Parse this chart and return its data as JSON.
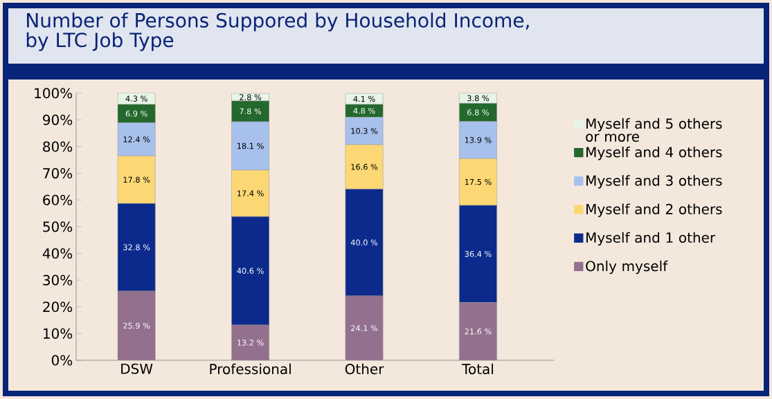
{
  "chart_data": {
    "type": "bar",
    "stacked": true,
    "title": "Number of Persons Suppored by Household Income,\nby LTC Job Type",
    "categories": [
      "DSW",
      "Professional",
      "Other",
      "Total"
    ],
    "series": [
      {
        "name": "Only myself",
        "color": "#93708e",
        "values": [
          25.9,
          13.2,
          24.1,
          21.6
        ],
        "value_labels": [
          "25.9 %",
          "13.2 %",
          "24.1 %",
          "21.6 %"
        ]
      },
      {
        "name": "Myself and 1 other",
        "color": "#0b2a8c",
        "values": [
          32.8,
          40.6,
          40.0,
          36.4
        ],
        "value_labels": [
          "32.8 %",
          "40.6 %",
          "40.0 %",
          "36.4 %"
        ]
      },
      {
        "name": "Myself and 2 others",
        "color": "#fcd874",
        "values": [
          17.8,
          17.4,
          16.6,
          17.5
        ],
        "value_labels": [
          "17.8 %",
          "17.4 %",
          "16.6 %",
          "17.5 %"
        ]
      },
      {
        "name": "Myself and 3 others",
        "color": "#a8c0ec",
        "values": [
          12.4,
          18.1,
          10.3,
          13.9
        ],
        "value_labels": [
          "12.4 %",
          "18.1 %",
          "10.3 %",
          "13.9 %"
        ]
      },
      {
        "name": "Myself and 4 others",
        "color": "#23682c",
        "values": [
          6.9,
          7.8,
          4.8,
          6.8
        ],
        "value_labels": [
          "6.9 %",
          "7.8 %",
          "4.8 %",
          "6.8 %"
        ]
      },
      {
        "name": "Myself and 5 others or more",
        "color": "#e6f5e6",
        "values": [
          4.3,
          2.8,
          4.1,
          3.8
        ],
        "value_labels": [
          "4.3 %",
          "2.8 %",
          "4.1 %",
          "3.8 %"
        ]
      }
    ],
    "ylim": [
      0,
      100.1
    ],
    "yticks": [
      {
        "value": 0,
        "label": "0%"
      },
      {
        "value": 10,
        "label": "10%"
      },
      {
        "value": 20,
        "label": "20%"
      },
      {
        "value": 30,
        "label": "30%"
      },
      {
        "value": 40,
        "label": "40%"
      },
      {
        "value": 50,
        "label": "50%"
      },
      {
        "value": 60,
        "label": "60%"
      },
      {
        "value": 70,
        "label": "70%"
      },
      {
        "value": 80,
        "label": "80%"
      },
      {
        "value": 90,
        "label": "90%"
      },
      {
        "value": 100,
        "label": "100%"
      }
    ],
    "legend": "right"
  }
}
